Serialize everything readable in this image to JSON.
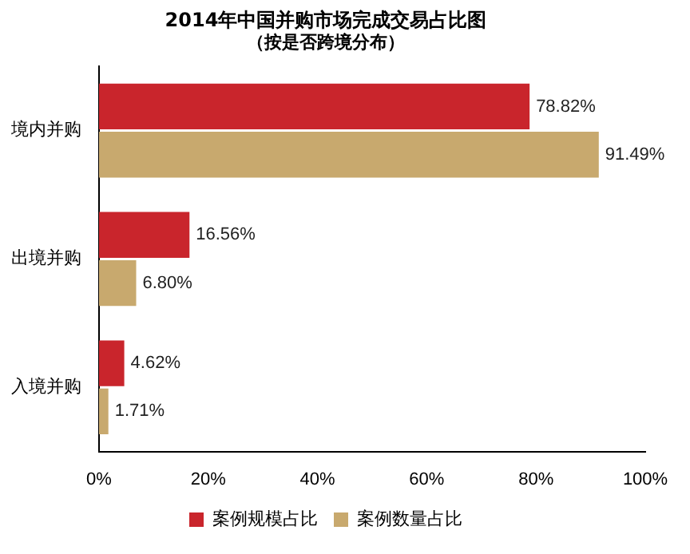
{
  "chart_data": {
    "type": "bar",
    "orientation": "horizontal",
    "title": "2014年中国并购市场完成交易占比图",
    "subtitle": "（按是否跨境分布）",
    "categories": [
      "境内并购",
      "出境并购",
      "入境并购"
    ],
    "series": [
      {
        "name": "案例规模占比",
        "color": "#c9252c",
        "values": [
          78.82,
          16.56,
          4.62
        ],
        "value_labels": [
          "78.82%",
          "16.56%",
          "4.62%"
        ]
      },
      {
        "name": "案例数量占比",
        "color": "#c8a96e",
        "values": [
          91.49,
          6.8,
          1.71
        ],
        "value_labels": [
          "91.49%",
          "6.80%",
          "1.71%"
        ]
      }
    ],
    "xlim": [
      0,
      100
    ],
    "xticks": [
      {
        "value": 0,
        "label": "0%"
      },
      {
        "value": 20,
        "label": "20%"
      },
      {
        "value": 40,
        "label": "40%"
      },
      {
        "value": 60,
        "label": "60%"
      },
      {
        "value": 80,
        "label": "80%"
      },
      {
        "value": 100,
        "label": "100%"
      }
    ],
    "grid": false,
    "legend": "bottom"
  }
}
